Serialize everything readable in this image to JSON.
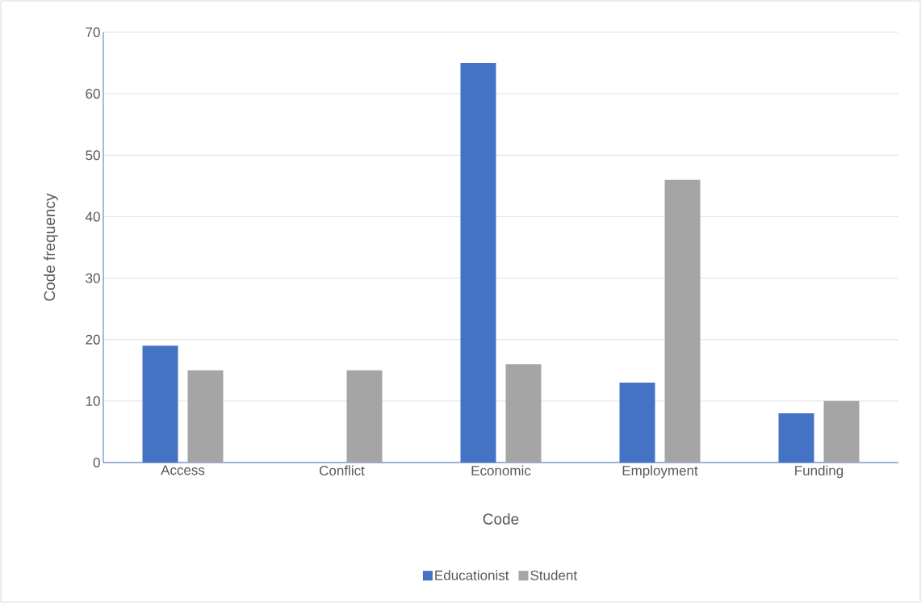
{
  "chart_data": {
    "type": "bar",
    "xlabel": "Code",
    "ylabel": "Code frequency",
    "categories": [
      "Access",
      "Conflict",
      "Economic",
      "Employment",
      "Funding"
    ],
    "series": [
      {
        "name": "Educationist",
        "color": "#4472c4",
        "values": [
          19,
          0,
          65,
          13,
          8
        ]
      },
      {
        "name": "Student",
        "color": "#a5a5a5",
        "values": [
          15,
          15,
          16,
          46,
          10
        ]
      }
    ],
    "ylim": [
      0,
      70
    ],
    "yticks": [
      0,
      10,
      20,
      30,
      40,
      50,
      60,
      70
    ],
    "grid": "y",
    "legend": "bottom"
  }
}
